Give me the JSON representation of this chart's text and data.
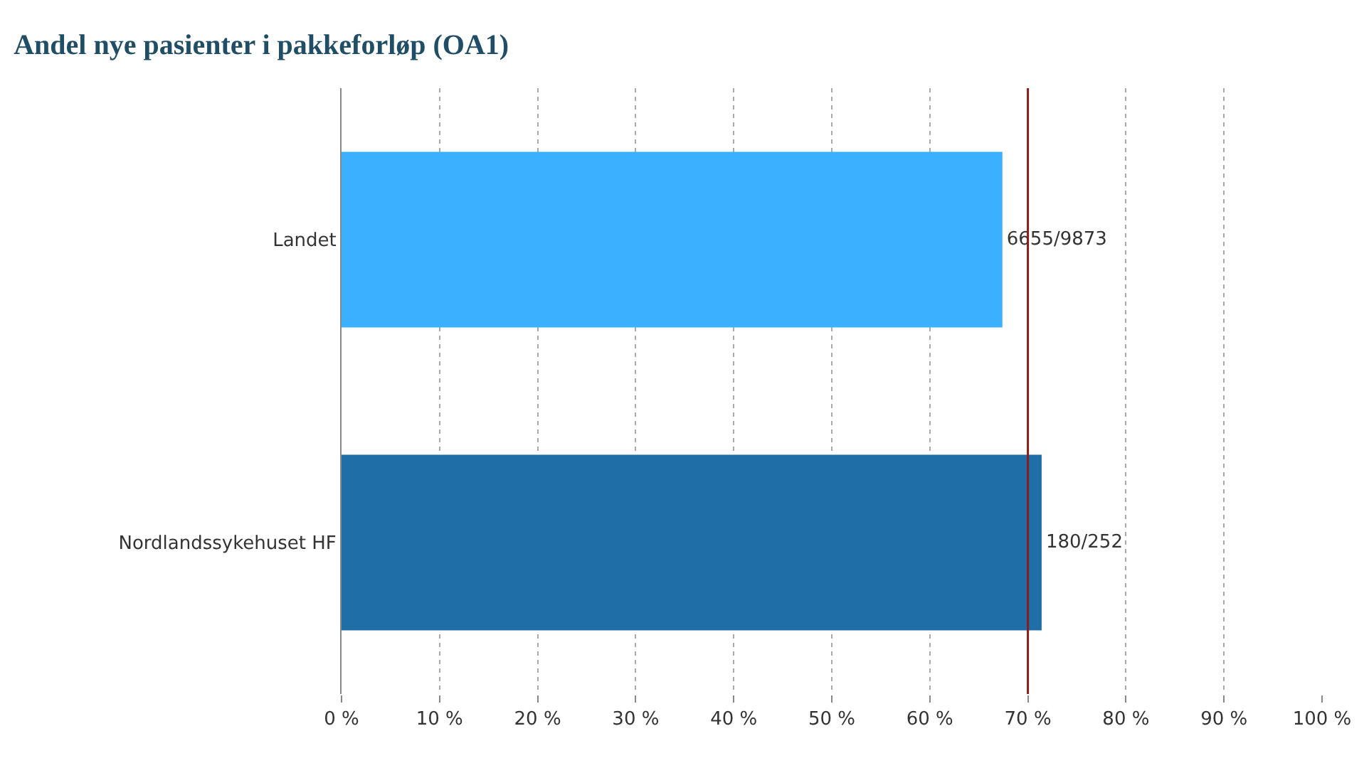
{
  "chart_data": {
    "type": "bar",
    "orientation": "horizontal",
    "title": "Andel nye pasienter i pakkeforløp (OA1)",
    "categories": [
      "Landet",
      "Nordlandssykehuset HF"
    ],
    "values": [
      67.4,
      71.4
    ],
    "colors": [
      "#3bb0fc",
      "#1f6ea8"
    ],
    "value_labels": [
      "6655/9873",
      "180/252"
    ],
    "xlim": [
      0,
      100
    ],
    "xticks": [
      {
        "value": 0,
        "label": "0 %"
      },
      {
        "value": 10,
        "label": "10 %"
      },
      {
        "value": 20,
        "label": "20 %"
      },
      {
        "value": 30,
        "label": "30 %"
      },
      {
        "value": 40,
        "label": "40 %"
      },
      {
        "value": 50,
        "label": "50 %"
      },
      {
        "value": 60,
        "label": "60 %"
      },
      {
        "value": 70,
        "label": "70 %"
      },
      {
        "value": 80,
        "label": "80 %"
      },
      {
        "value": 90,
        "label": "90 %"
      },
      {
        "value": 100,
        "label": "100 %"
      }
    ],
    "ref_lines": [
      {
        "axis": "x",
        "value": 70,
        "label": null,
        "color": "#8b1a1a",
        "line_style": "solid"
      }
    ],
    "grid": "x",
    "legend": false
  }
}
